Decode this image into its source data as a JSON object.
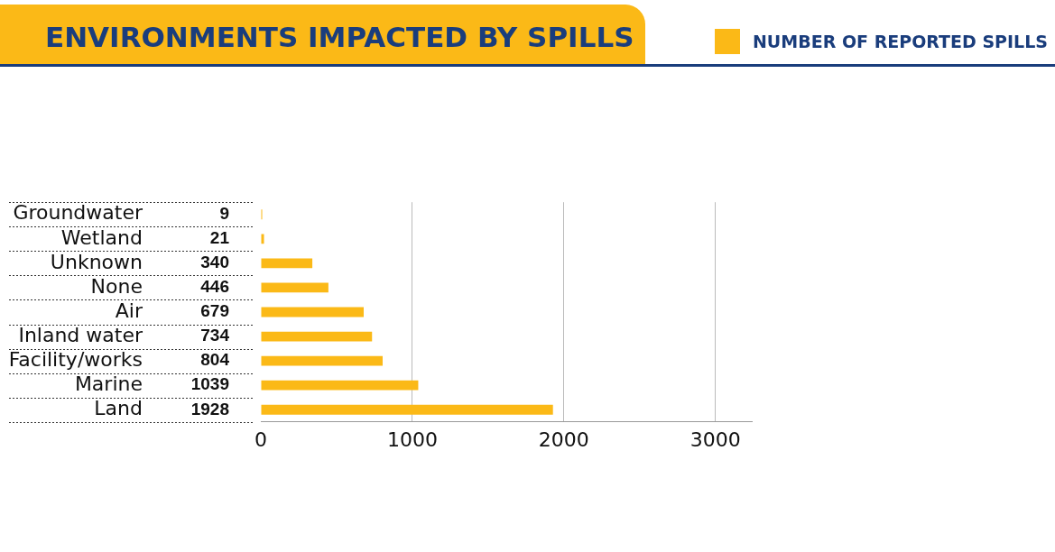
{
  "chart_data": {
    "type": "bar",
    "orientation": "horizontal",
    "title": "ENVIRONMENTS IMPACTED BY SPILLS",
    "categories": [
      "Groundwater",
      "Wetland",
      "Unknown",
      "None",
      "Air",
      "Inland water",
      "Facility/works",
      "Marine",
      "Land"
    ],
    "series": [
      {
        "name": "NUMBER OF REPORTED SPILLS",
        "color": "#fbb917",
        "values": [
          9,
          21,
          340,
          446,
          679,
          734,
          804,
          1039,
          1928
        ]
      }
    ],
    "xlim": [
      0,
      3240
    ],
    "xticks": [
      0,
      1000,
      2000,
      3000
    ],
    "grid": "x",
    "legend": "top right",
    "data_labels": true
  }
}
